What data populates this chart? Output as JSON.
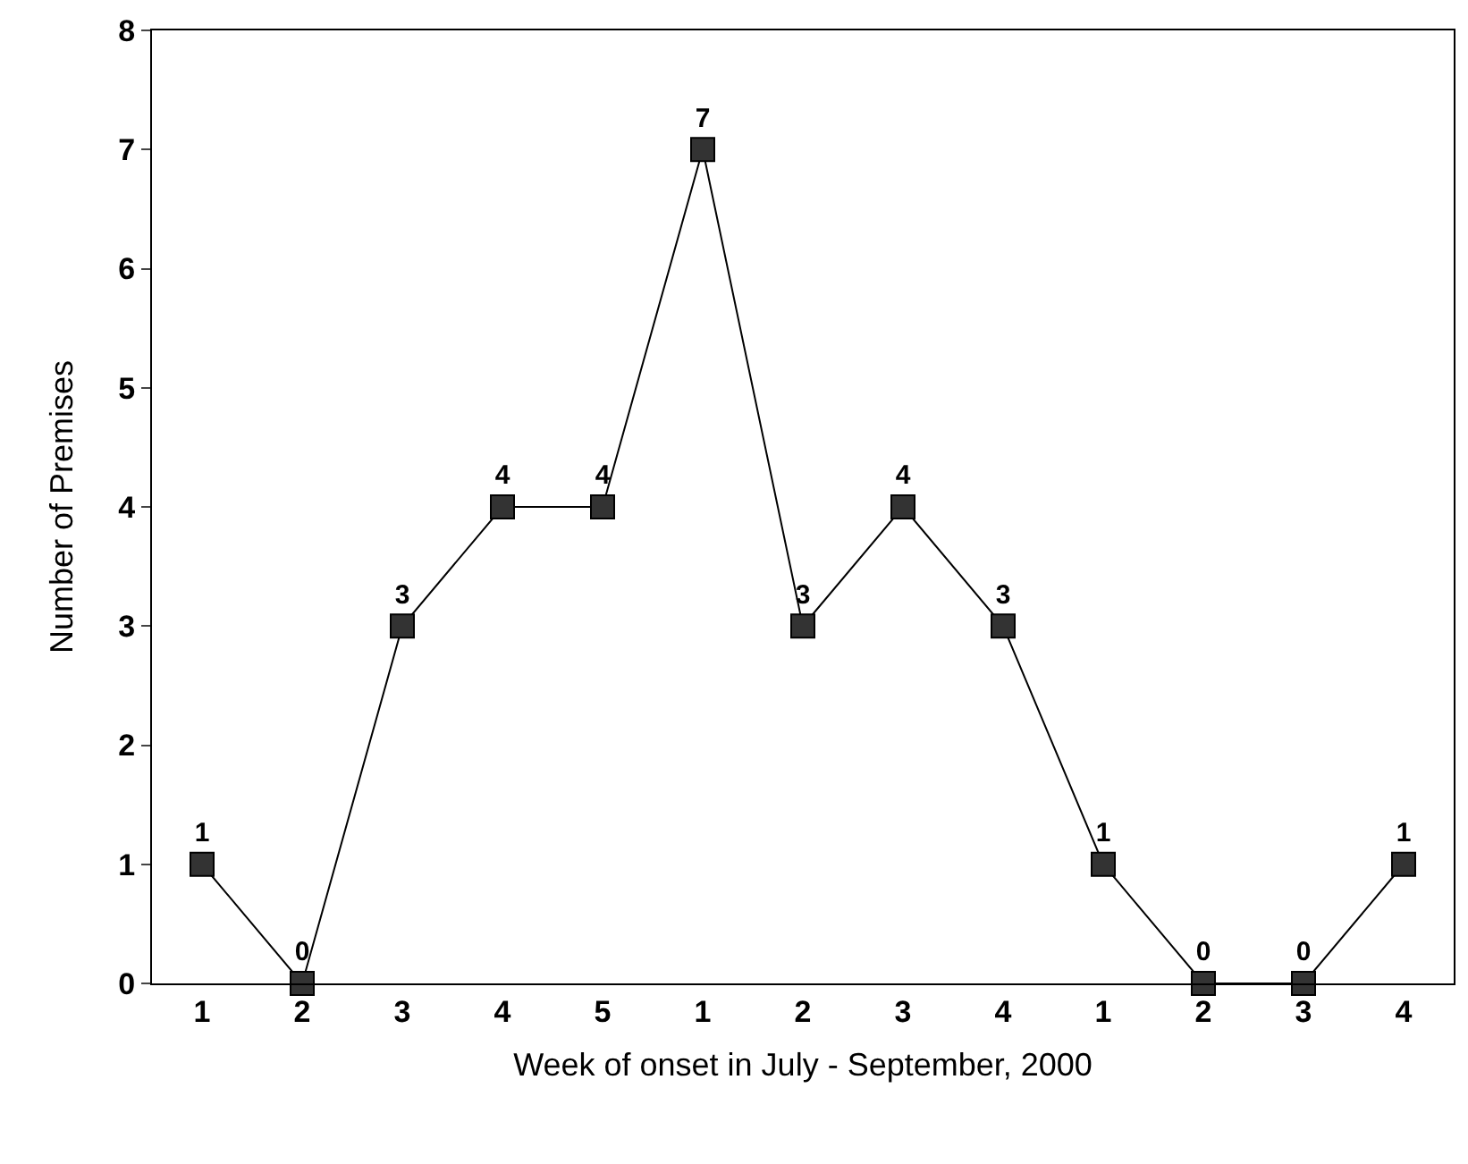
{
  "chart_data": {
    "type": "line",
    "xlabel": "Week of onset in July - September, 2000",
    "ylabel": "Number of Premises",
    "categories": [
      "1",
      "2",
      "3",
      "4",
      "5",
      "1",
      "2",
      "3",
      "4",
      "1",
      "2",
      "3",
      "4"
    ],
    "series": [
      {
        "color": "#333333",
        "values": [
          1,
          0,
          3,
          4,
          4,
          7,
          3,
          4,
          3,
          1,
          0,
          0,
          1
        ]
      }
    ],
    "ylim": [
      0,
      8
    ],
    "yticks": [
      0,
      1,
      2,
      3,
      4,
      5,
      6,
      7,
      8
    ],
    "legend": false,
    "marker": "square",
    "line_style": "solid",
    "data_labels": true
  }
}
